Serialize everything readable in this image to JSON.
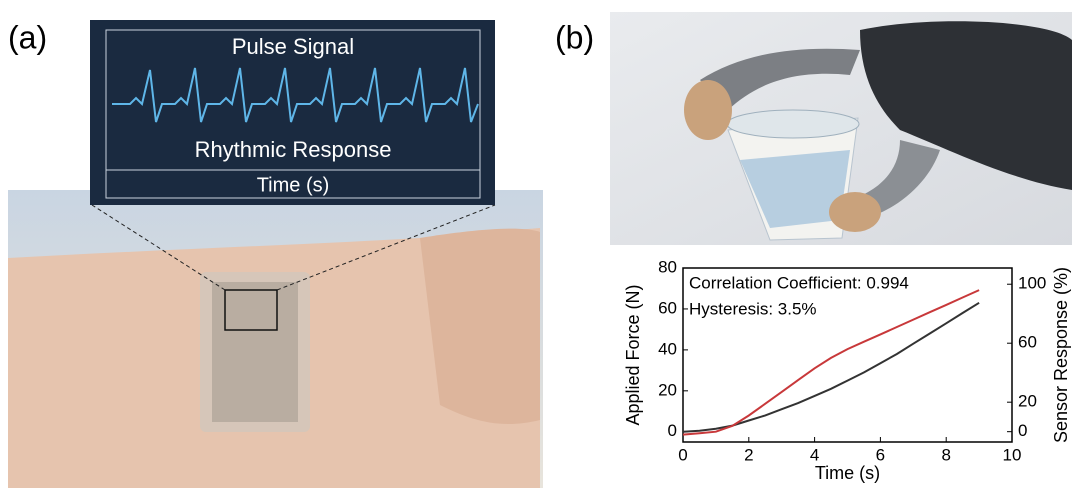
{
  "panel_a": {
    "label": "(a)",
    "inset_title": "Pulse Signal",
    "inset_subtitle": "Rhythmic Response",
    "inset_axis": "Time (s)"
  },
  "panel_b": {
    "label": "(b)"
  },
  "chart_data": {
    "type": "line",
    "xlabel": "Time (s)",
    "ylabel": "Applied Force (N)",
    "y2label": "Sensor Response (%)",
    "annotations": [
      "Correlation Coefficient: 0.994",
      "Hysteresis: 3.5%"
    ],
    "x": [
      0,
      0.5,
      1,
      1.5,
      2,
      2.5,
      3,
      3.5,
      4,
      4.5,
      5,
      5.5,
      6,
      6.5,
      7,
      7.5,
      8,
      8.5,
      9
    ],
    "series": [
      {
        "color": "#333333",
        "values": [
          0,
          0.5,
          1.5,
          3,
          5.5,
          8,
          11,
          14,
          17.5,
          21,
          25,
          29,
          33.5,
          38,
          43,
          48,
          53,
          58,
          63
        ]
      },
      {
        "color": "#c8383a",
        "axis": "y2",
        "values": [
          -2,
          -1,
          0,
          4,
          11,
          19,
          27,
          35,
          43,
          50,
          56,
          61,
          66,
          71,
          76,
          81,
          86,
          91,
          96
        ]
      }
    ],
    "xlim": [
      0,
      10
    ],
    "xticks": [
      0,
      2,
      4,
      6,
      8,
      10
    ],
    "ylim": [
      -5,
      80
    ],
    "yticks": [
      0,
      20,
      40,
      60,
      80
    ],
    "y2lim": [
      -7,
      111
    ],
    "y2ticks": [
      0,
      20,
      60,
      100
    ]
  }
}
